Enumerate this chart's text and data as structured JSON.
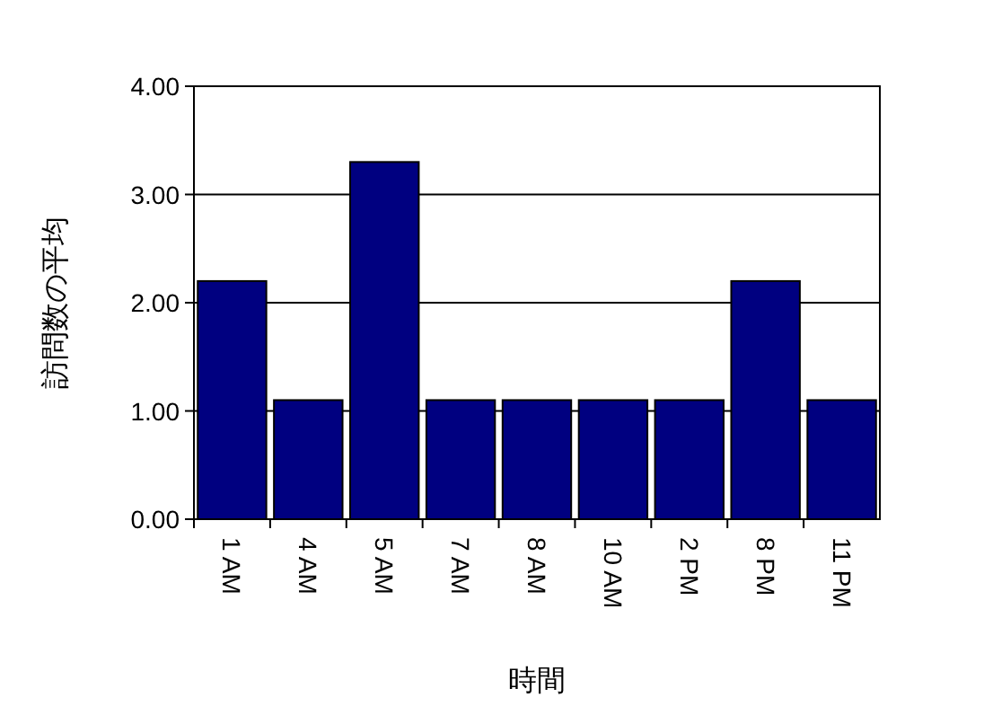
{
  "chart_data": {
    "type": "bar",
    "xlabel": "時間",
    "ylabel": "訪問数の平均",
    "categories": [
      "1 AM",
      "4 AM",
      "5 AM",
      "7 AM",
      "8 AM",
      "10 AM",
      "2 PM",
      "8 PM",
      "11 PM"
    ],
    "values": [
      2.2,
      1.1,
      3.3,
      1.1,
      1.1,
      1.1,
      1.1,
      2.2,
      1.1
    ],
    "color": "#000080",
    "ylim": [
      0,
      4
    ],
    "yticks": [
      {
        "value": 0,
        "label": "0.00"
      },
      {
        "value": 1,
        "label": "1.00"
      },
      {
        "value": 2,
        "label": "2.00"
      },
      {
        "value": 3,
        "label": "3.00"
      },
      {
        "value": 4,
        "label": "4.00"
      }
    ],
    "grid": "y"
  }
}
